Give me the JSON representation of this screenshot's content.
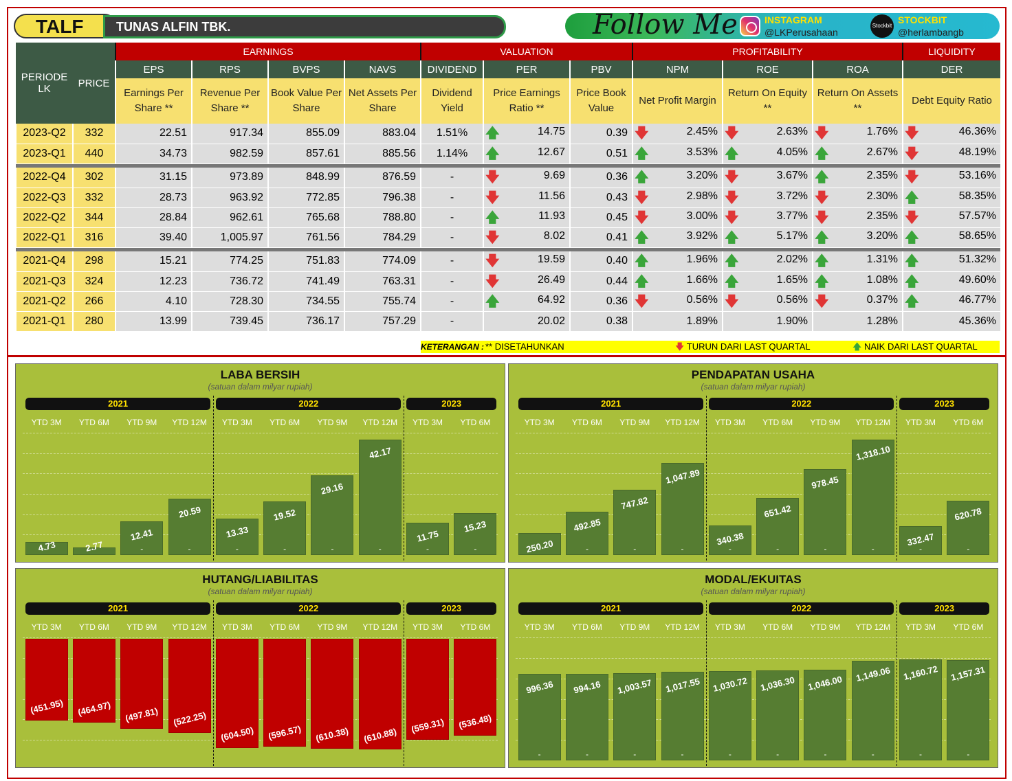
{
  "header": {
    "ticker": "TALF",
    "company": "TUNAS ALFIN TBK.",
    "follow": "Follow Me",
    "instagram_label": "INSTAGRAM",
    "instagram_handle": "@LKPerusahaan",
    "stockbit_label": "STOCKBIT",
    "stockbit_icon_text": "Stockbit",
    "stockbit_handle": "@herlambangb"
  },
  "table": {
    "groups": {
      "earnings": "EARNINGS",
      "valuation": "VALUATION",
      "profitability": "PROFITABILITY",
      "liquidity": "LIQUIDITY"
    },
    "periode_label": "PERIODE LK",
    "price_label": "PRICE",
    "columns": [
      {
        "code": "EPS",
        "desc": "Earnings Per Share **"
      },
      {
        "code": "RPS",
        "desc": "Revenue Per Share **"
      },
      {
        "code": "BVPS",
        "desc": "Book Value Per Share"
      },
      {
        "code": "NAVS",
        "desc": "Net Assets Per Share"
      },
      {
        "code": "DIVIDEND",
        "desc": "Dividend Yield"
      },
      {
        "code": "PER",
        "desc": "Price Earnings Ratio **"
      },
      {
        "code": "PBV",
        "desc": "Price Book Value"
      },
      {
        "code": "NPM",
        "desc": "Net Profit Margin"
      },
      {
        "code": "ROE",
        "desc": "Return On Equity **"
      },
      {
        "code": "ROA",
        "desc": "Return On Assets **"
      },
      {
        "code": "DER",
        "desc": "Debt Equity Ratio"
      }
    ],
    "rows": [
      {
        "periode": "2023-Q2",
        "price": "332",
        "eps": "22.51",
        "rps": "917.34",
        "bvps": "855.09",
        "navs": "883.04",
        "div": "1.51%",
        "per": "14.75",
        "per_dir": "up",
        "pbv": "0.39",
        "npm": "2.45%",
        "npm_dir": "down",
        "roe": "2.63%",
        "roe_dir": "down",
        "roa": "1.76%",
        "roa_dir": "down",
        "der": "46.36%",
        "der_dir": "down"
      },
      {
        "periode": "2023-Q1",
        "price": "440",
        "eps": "34.73",
        "rps": "982.59",
        "bvps": "857.61",
        "navs": "885.56",
        "div": "1.14%",
        "per": "12.67",
        "per_dir": "up",
        "pbv": "0.51",
        "npm": "3.53%",
        "npm_dir": "up",
        "roe": "4.05%",
        "roe_dir": "up",
        "roa": "2.67%",
        "roa_dir": "up",
        "der": "48.19%",
        "der_dir": "down"
      },
      {
        "periode": "2022-Q4",
        "price": "302",
        "eps": "31.15",
        "rps": "973.89",
        "bvps": "848.99",
        "navs": "876.59",
        "div": "-",
        "per": "9.69",
        "per_dir": "down",
        "pbv": "0.36",
        "npm": "3.20%",
        "npm_dir": "up",
        "roe": "3.67%",
        "roe_dir": "down",
        "roa": "2.35%",
        "roa_dir": "up",
        "der": "53.16%",
        "der_dir": "down"
      },
      {
        "periode": "2022-Q3",
        "price": "332",
        "eps": "28.73",
        "rps": "963.92",
        "bvps": "772.85",
        "navs": "796.38",
        "div": "-",
        "per": "11.56",
        "per_dir": "down",
        "pbv": "0.43",
        "npm": "2.98%",
        "npm_dir": "down",
        "roe": "3.72%",
        "roe_dir": "down",
        "roa": "2.30%",
        "roa_dir": "down",
        "der": "58.35%",
        "der_dir": "up"
      },
      {
        "periode": "2022-Q2",
        "price": "344",
        "eps": "28.84",
        "rps": "962.61",
        "bvps": "765.68",
        "navs": "788.80",
        "div": "-",
        "per": "11.93",
        "per_dir": "up",
        "pbv": "0.45",
        "npm": "3.00%",
        "npm_dir": "down",
        "roe": "3.77%",
        "roe_dir": "down",
        "roa": "2.35%",
        "roa_dir": "down",
        "der": "57.57%",
        "der_dir": "down"
      },
      {
        "periode": "2022-Q1",
        "price": "316",
        "eps": "39.40",
        "rps": "1,005.97",
        "bvps": "761.56",
        "navs": "784.29",
        "div": "-",
        "per": "8.02",
        "per_dir": "down",
        "pbv": "0.41",
        "npm": "3.92%",
        "npm_dir": "up",
        "roe": "5.17%",
        "roe_dir": "up",
        "roa": "3.20%",
        "roa_dir": "up",
        "der": "58.65%",
        "der_dir": "up"
      },
      {
        "periode": "2021-Q4",
        "price": "298",
        "eps": "15.21",
        "rps": "774.25",
        "bvps": "751.83",
        "navs": "774.09",
        "div": "-",
        "per": "19.59",
        "per_dir": "down",
        "pbv": "0.40",
        "npm": "1.96%",
        "npm_dir": "up",
        "roe": "2.02%",
        "roe_dir": "up",
        "roa": "1.31%",
        "roa_dir": "up",
        "der": "51.32%",
        "der_dir": "up"
      },
      {
        "periode": "2021-Q3",
        "price": "324",
        "eps": "12.23",
        "rps": "736.72",
        "bvps": "741.49",
        "navs": "763.31",
        "div": "-",
        "per": "26.49",
        "per_dir": "down",
        "pbv": "0.44",
        "npm": "1.66%",
        "npm_dir": "up",
        "roe": "1.65%",
        "roe_dir": "up",
        "roa": "1.08%",
        "roa_dir": "up",
        "der": "49.60%",
        "der_dir": "up"
      },
      {
        "periode": "2021-Q2",
        "price": "266",
        "eps": "4.10",
        "rps": "728.30",
        "bvps": "734.55",
        "navs": "755.74",
        "div": "-",
        "per": "64.92",
        "per_dir": "up",
        "pbv": "0.36",
        "npm": "0.56%",
        "npm_dir": "down",
        "roe": "0.56%",
        "roe_dir": "down",
        "roa": "0.37%",
        "roa_dir": "down",
        "der": "46.77%",
        "der_dir": "up"
      },
      {
        "periode": "2021-Q1",
        "price": "280",
        "eps": "13.99",
        "rps": "739.45",
        "bvps": "736.17",
        "navs": "757.29",
        "div": "-",
        "per": "20.02",
        "per_dir": "",
        "pbv": "0.38",
        "npm": "1.89%",
        "npm_dir": "",
        "roe": "1.90%",
        "roe_dir": "",
        "roa": "1.28%",
        "roa_dir": "",
        "der": "45.36%",
        "der_dir": ""
      }
    ],
    "legend": {
      "keterangan": "KETERANGAN :",
      "note": "** DISETAHUNKAN",
      "down": "TURUN DARI LAST QUARTAL",
      "up": "NAIK DARI LAST QUARTAL"
    }
  },
  "chart_data": [
    {
      "type": "bar",
      "title": "LABA BERSIH",
      "subtitle": "(satuan dalam milyar rupiah)",
      "years": [
        "2021",
        "2022",
        "2023"
      ],
      "categories": [
        "YTD 3M",
        "YTD 6M",
        "YTD 9M",
        "YTD 12M",
        "YTD 3M",
        "YTD 6M",
        "YTD 9M",
        "YTD 12M",
        "YTD 3M",
        "YTD 6M"
      ],
      "values": [
        4.73,
        2.77,
        12.41,
        20.59,
        13.33,
        19.52,
        29.16,
        42.17,
        11.75,
        15.23
      ],
      "labels": [
        "4.73",
        "2.77",
        "12.41",
        "20.59",
        "13.33",
        "19.52",
        "29.16",
        "42.17",
        "11.75",
        "15.23"
      ]
    },
    {
      "type": "bar",
      "title": "PENDAPATAN USAHA",
      "subtitle": "(satuan dalam milyar rupiah)",
      "years": [
        "2021",
        "2022",
        "2023"
      ],
      "categories": [
        "YTD 3M",
        "YTD 6M",
        "YTD 9M",
        "YTD 12M",
        "YTD 3M",
        "YTD 6M",
        "YTD 9M",
        "YTD 12M",
        "YTD 3M",
        "YTD 6M"
      ],
      "values": [
        250.2,
        492.85,
        747.82,
        1047.89,
        340.38,
        651.42,
        978.45,
        1318.1,
        332.47,
        620.78
      ],
      "labels": [
        "250.20",
        "492.85",
        "747.82",
        "1,047.89",
        "340.38",
        "651.42",
        "978.45",
        "1,318.10",
        "332.47",
        "620.78"
      ]
    },
    {
      "type": "bar",
      "title": "HUTANG/LIABILITAS",
      "subtitle": "(satuan dalam milyar rupiah)",
      "years": [
        "2021",
        "2022",
        "2023"
      ],
      "categories": [
        "YTD 3M",
        "YTD 6M",
        "YTD 9M",
        "YTD 12M",
        "YTD 3M",
        "YTD 6M",
        "YTD 9M",
        "YTD 12M",
        "YTD 3M",
        "YTD 6M"
      ],
      "values": [
        -451.95,
        -464.97,
        -497.81,
        -522.25,
        -604.5,
        -596.57,
        -610.38,
        -610.88,
        -559.31,
        -536.48
      ],
      "labels": [
        "(451.95)",
        "(464.97)",
        "(497.81)",
        "(522.25)",
        "(604.50)",
        "(596.57)",
        "(610.38)",
        "(610.88)",
        "(559.31)",
        "(536.48)"
      ]
    },
    {
      "type": "bar",
      "title": "MODAL/EKUITAS",
      "subtitle": "(satuan dalam milyar rupiah)",
      "years": [
        "2021",
        "2022",
        "2023"
      ],
      "categories": [
        "YTD 3M",
        "YTD 6M",
        "YTD 9M",
        "YTD 12M",
        "YTD 3M",
        "YTD 6M",
        "YTD 9M",
        "YTD 12M",
        "YTD 3M",
        "YTD 6M"
      ],
      "values": [
        996.36,
        994.16,
        1003.57,
        1017.55,
        1030.72,
        1036.3,
        1046.0,
        1149.06,
        1160.72,
        1157.31
      ],
      "labels": [
        "996.36",
        "994.16",
        "1,003.57",
        "1,017.55",
        "1,030.72",
        "1,036.30",
        "1,046.00",
        "1,149.06",
        "1,160.72",
        "1,157.31"
      ]
    }
  ],
  "colors": {
    "red": "#c00000",
    "green": "#567d32",
    "panel": "#a9bf3b",
    "yellow": "#f7e070"
  }
}
